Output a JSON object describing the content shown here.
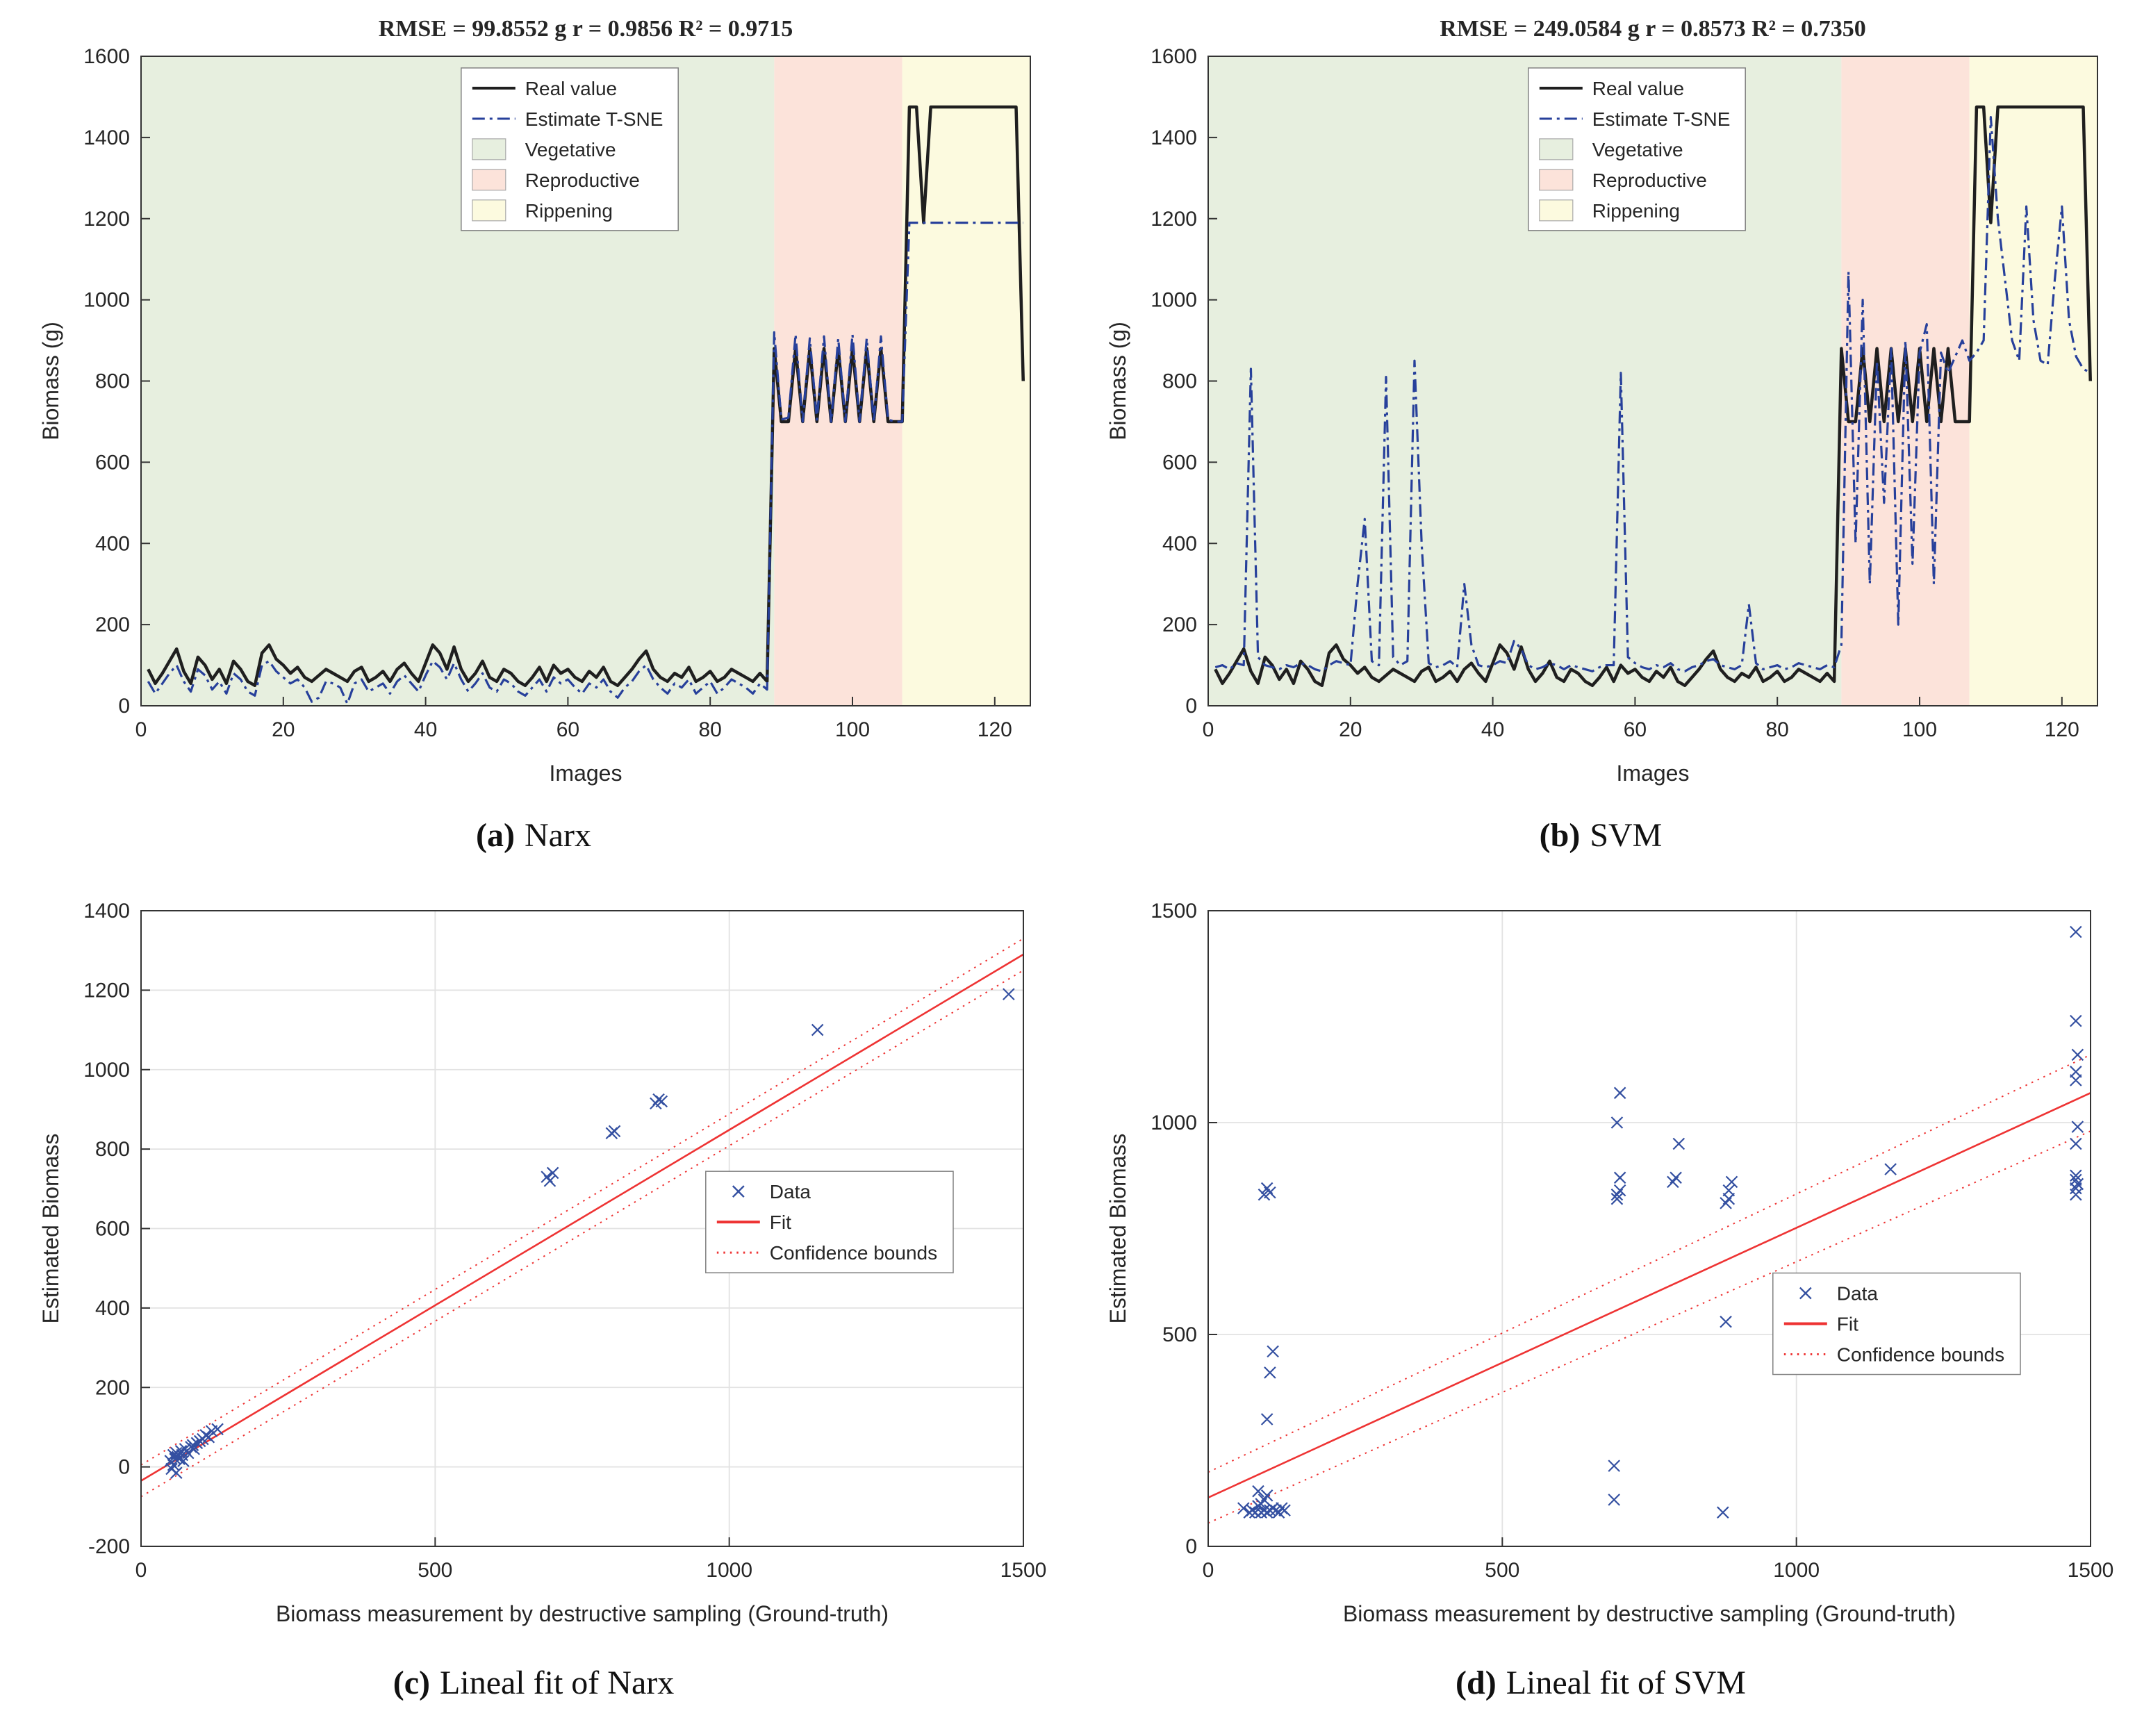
{
  "figure": {
    "captions": [
      {
        "label": "(a)",
        "text": "Narx"
      },
      {
        "label": "(b)",
        "text": "SVM"
      },
      {
        "label": "(c)",
        "text": "Lineal fit of Narx"
      },
      {
        "label": "(d)",
        "text": "Lineal fit of SVM"
      }
    ]
  },
  "chart_data": [
    {
      "id": "narx-timeseries",
      "type": "line",
      "title": "RMSE = 99.8552 g r = 0.9856 R² = 0.9715",
      "xlabel": "Images",
      "ylabel": "Biomass (g)",
      "xlim": [
        0,
        125
      ],
      "ylim": [
        0,
        1600
      ],
      "xticks": [
        0,
        20,
        40,
        60,
        80,
        100,
        120
      ],
      "yticks": [
        0,
        200,
        400,
        600,
        800,
        1000,
        1200,
        1400,
        1600
      ],
      "grid": false,
      "regions": [
        {
          "name": "Vegetative",
          "from": 0,
          "to": 89,
          "color": "#e7efdf"
        },
        {
          "name": "Reproductive",
          "from": 89,
          "to": 107,
          "color": "#fce3da"
        },
        {
          "name": "Rippening",
          "from": 107,
          "to": 125,
          "color": "#fcfadf"
        }
      ],
      "series": [
        {
          "name": "Real value",
          "color": "#1f1f1f",
          "style": "solid",
          "width": 4.5,
          "x_start": 1,
          "values": [
            90,
            55,
            80,
            110,
            140,
            85,
            55,
            120,
            100,
            65,
            90,
            55,
            110,
            90,
            60,
            50,
            130,
            150,
            115,
            100,
            80,
            95,
            70,
            60,
            75,
            90,
            80,
            70,
            60,
            85,
            95,
            60,
            70,
            85,
            60,
            90,
            105,
            80,
            60,
            105,
            150,
            130,
            90,
            145,
            90,
            60,
            80,
            110,
            70,
            60,
            90,
            80,
            60,
            50,
            70,
            95,
            60,
            100,
            80,
            90,
            70,
            60,
            85,
            70,
            95,
            60,
            50,
            70,
            90,
            115,
            135,
            90,
            70,
            60,
            80,
            70,
            95,
            60,
            70,
            85,
            60,
            70,
            90,
            80,
            70,
            60,
            80,
            60,
            880,
            700,
            700,
            880,
            700,
            880,
            700,
            880,
            700,
            880,
            700,
            880,
            700,
            880,
            700,
            880,
            700,
            700,
            700,
            1475,
            1475,
            1190,
            1475,
            1475,
            1475,
            1475,
            1475,
            1475,
            1475,
            1475,
            1475,
            1475,
            1475,
            1475,
            1475,
            800
          ]
        },
        {
          "name": "Estimate T-SNE",
          "color": "#27409b",
          "style": "dashdot",
          "width": 3.2,
          "x_start": 1,
          "values": [
            60,
            30,
            55,
            80,
            100,
            60,
            35,
            90,
            75,
            40,
            60,
            30,
            80,
            65,
            35,
            25,
            100,
            110,
            85,
            70,
            55,
            65,
            45,
            10,
            20,
            60,
            55,
            45,
            5,
            55,
            65,
            35,
            45,
            55,
            30,
            60,
            75,
            55,
            35,
            75,
            110,
            95,
            65,
            105,
            65,
            35,
            55,
            80,
            45,
            35,
            65,
            55,
            35,
            25,
            45,
            65,
            35,
            70,
            55,
            65,
            45,
            30,
            55,
            45,
            65,
            35,
            20,
            45,
            60,
            85,
            100,
            65,
            45,
            30,
            55,
            45,
            65,
            30,
            45,
            60,
            30,
            45,
            65,
            55,
            45,
            30,
            55,
            40,
            920,
            705,
            710,
            915,
            700,
            905,
            705,
            910,
            700,
            905,
            700,
            915,
            700,
            905,
            700,
            910,
            705,
            700,
            700,
            1190,
            1190,
            1190,
            1190,
            1190,
            1190,
            1190,
            1190,
            1190,
            1190,
            1190,
            1190,
            1190,
            1190,
            1190,
            1190,
            1190
          ]
        }
      ],
      "legend_pos": [
        0.36,
        0.018
      ],
      "legend_items": [
        {
          "label": "Real value",
          "type": "line",
          "color": "#1f1f1f",
          "style": "solid"
        },
        {
          "label": "Estimate T-SNE",
          "type": "line",
          "color": "#27409b",
          "style": "dashdot"
        },
        {
          "label": "Vegetative",
          "type": "patch",
          "color": "#e7efdf"
        },
        {
          "label": "Reproductive",
          "type": "patch",
          "color": "#fce3da"
        },
        {
          "label": "Rippening",
          "type": "patch",
          "color": "#fcfadf"
        }
      ]
    },
    {
      "id": "svm-timeseries",
      "type": "line",
      "title": "RMSE = 249.0584 g r = 0.8573 R² = 0.7350",
      "xlabel": "Images",
      "ylabel": "Biomass (g)",
      "xlim": [
        0,
        125
      ],
      "ylim": [
        0,
        1600
      ],
      "xticks": [
        0,
        20,
        40,
        60,
        80,
        100,
        120
      ],
      "yticks": [
        0,
        200,
        400,
        600,
        800,
        1000,
        1200,
        1400,
        1600
      ],
      "grid": false,
      "regions": [
        {
          "name": "Vegetative",
          "from": 0,
          "to": 89,
          "color": "#e7efdf"
        },
        {
          "name": "Reproductive",
          "from": 89,
          "to": 107,
          "color": "#fce3da"
        },
        {
          "name": "Rippening",
          "from": 107,
          "to": 125,
          "color": "#fcfadf"
        }
      ],
      "series": [
        {
          "name": "Real value",
          "color": "#1f1f1f",
          "style": "solid",
          "width": 4.5,
          "x_start": 1,
          "values": [
            90,
            55,
            80,
            110,
            140,
            85,
            55,
            120,
            100,
            65,
            90,
            55,
            110,
            90,
            60,
            50,
            130,
            150,
            115,
            100,
            80,
            95,
            70,
            60,
            75,
            90,
            80,
            70,
            60,
            85,
            95,
            60,
            70,
            85,
            60,
            90,
            105,
            80,
            60,
            105,
            150,
            130,
            90,
            145,
            90,
            60,
            80,
            110,
            70,
            60,
            90,
            80,
            60,
            50,
            70,
            95,
            60,
            100,
            80,
            90,
            70,
            60,
            85,
            70,
            95,
            60,
            50,
            70,
            90,
            115,
            135,
            90,
            70,
            60,
            80,
            70,
            95,
            60,
            70,
            85,
            60,
            70,
            90,
            80,
            70,
            60,
            80,
            60,
            880,
            700,
            700,
            880,
            700,
            880,
            700,
            880,
            700,
            880,
            700,
            880,
            700,
            880,
            700,
            880,
            700,
            700,
            700,
            1475,
            1475,
            1190,
            1475,
            1475,
            1475,
            1475,
            1475,
            1475,
            1475,
            1475,
            1475,
            1475,
            1475,
            1475,
            1475,
            800
          ]
        },
        {
          "name": "Estimate T-SNE",
          "color": "#27409b",
          "style": "dashdot",
          "width": 3.2,
          "x_start": 1,
          "values": [
            95,
            100,
            90,
            105,
            100,
            830,
            120,
            100,
            95,
            90,
            100,
            95,
            105,
            100,
            90,
            85,
            100,
            110,
            105,
            100,
            300,
            460,
            110,
            100,
            810,
            120,
            100,
            110,
            850,
            400,
            105,
            95,
            100,
            110,
            95,
            300,
            150,
            100,
            95,
            100,
            110,
            105,
            160,
            140,
            100,
            90,
            95,
            105,
            100,
            90,
            100,
            95,
            90,
            85,
            95,
            100,
            100,
            820,
            120,
            105,
            95,
            90,
            100,
            95,
            105,
            90,
            85,
            95,
            100,
            110,
            115,
            100,
            95,
            90,
            100,
            250,
            105,
            90,
            95,
            100,
            90,
            95,
            105,
            100,
            95,
            90,
            100,
            95,
            150,
            1070,
            400,
            1000,
            300,
            850,
            500,
            880,
            200,
            900,
            350,
            870,
            940,
            300,
            870,
            820,
            860,
            900,
            850,
            870,
            900,
            1450,
            1200,
            1050,
            900,
            850,
            1230,
            950,
            850,
            840,
            1050,
            1230,
            950,
            860,
            830,
            820
          ]
        }
      ],
      "legend_pos": [
        0.36,
        0.018
      ],
      "legend_items": [
        {
          "label": "Real value",
          "type": "line",
          "color": "#1f1f1f",
          "style": "solid"
        },
        {
          "label": "Estimate T-SNE",
          "type": "line",
          "color": "#27409b",
          "style": "dashdot"
        },
        {
          "label": "Vegetative",
          "type": "patch",
          "color": "#e7efdf"
        },
        {
          "label": "Reproductive",
          "type": "patch",
          "color": "#fce3da"
        },
        {
          "label": "Rippening",
          "type": "patch",
          "color": "#fcfadf"
        }
      ]
    },
    {
      "id": "narx-linear-fit",
      "type": "scatter",
      "title": "",
      "xlabel": "Biomass measurement by destructive sampling (Ground-truth)",
      "ylabel": "Estimated Biomass",
      "xlim": [
        0,
        1500
      ],
      "ylim": [
        -200,
        1400
      ],
      "xticks": [
        0,
        500,
        1000,
        1500
      ],
      "yticks": [
        -200,
        0,
        200,
        400,
        600,
        800,
        1000,
        1200,
        1400
      ],
      "grid": true,
      "marker_color": "#3450a1",
      "fit_color": "#ee3333",
      "points": [
        [
          50,
          15
        ],
        [
          52,
          -5
        ],
        [
          55,
          30
        ],
        [
          55,
          5
        ],
        [
          58,
          20
        ],
        [
          60,
          35
        ],
        [
          60,
          -15
        ],
        [
          62,
          25
        ],
        [
          65,
          20
        ],
        [
          68,
          40
        ],
        [
          70,
          30
        ],
        [
          72,
          15
        ],
        [
          75,
          45
        ],
        [
          80,
          35
        ],
        [
          85,
          50
        ],
        [
          88,
          55
        ],
        [
          90,
          45
        ],
        [
          95,
          60
        ],
        [
          100,
          65
        ],
        [
          105,
          70
        ],
        [
          110,
          80
        ],
        [
          115,
          75
        ],
        [
          120,
          90
        ],
        [
          130,
          95
        ],
        [
          690,
          730
        ],
        [
          695,
          720
        ],
        [
          700,
          740
        ],
        [
          800,
          840
        ],
        [
          805,
          845
        ],
        [
          875,
          915
        ],
        [
          880,
          925
        ],
        [
          885,
          920
        ],
        [
          1150,
          1100
        ],
        [
          1475,
          1190
        ]
      ],
      "fit": {
        "x": [
          0,
          1500
        ],
        "y": [
          -35,
          1290
        ]
      },
      "bounds": {
        "x": [
          0,
          1500
        ],
        "upper": [
          5,
          1330
        ],
        "lower": [
          -75,
          1250
        ]
      },
      "legend_pos": [
        0.64,
        0.41
      ],
      "legend_items": [
        {
          "label": "Data",
          "type": "marker",
          "color": "#3450a1"
        },
        {
          "label": "Fit",
          "type": "line",
          "color": "#ee3333",
          "style": "solid"
        },
        {
          "label": "Confidence bounds",
          "type": "line",
          "color": "#ee3333",
          "style": "dotted"
        }
      ]
    },
    {
      "id": "svm-linear-fit",
      "type": "scatter",
      "title": "",
      "xlabel": "Biomass measurement by destructive sampling (Ground-truth)",
      "ylabel": "Estimated Biomass",
      "xlim": [
        0,
        1500
      ],
      "ylim": [
        0,
        1500
      ],
      "xticks": [
        0,
        500,
        1000,
        1500
      ],
      "yticks": [
        0,
        500,
        1000,
        1500
      ],
      "grid": true,
      "marker_color": "#3450a1",
      "fit_color": "#ee3333",
      "points": [
        [
          60,
          90
        ],
        [
          70,
          80
        ],
        [
          75,
          85
        ],
        [
          80,
          80
        ],
        [
          85,
          95
        ],
        [
          85,
          130
        ],
        [
          90,
          80
        ],
        [
          90,
          100
        ],
        [
          95,
          85
        ],
        [
          95,
          110
        ],
        [
          100,
          80
        ],
        [
          100,
          120
        ],
        [
          100,
          300
        ],
        [
          105,
          85
        ],
        [
          105,
          410
        ],
        [
          110,
          90
        ],
        [
          110,
          460
        ],
        [
          115,
          85
        ],
        [
          120,
          80
        ],
        [
          125,
          90
        ],
        [
          130,
          85
        ],
        [
          95,
          830
        ],
        [
          100,
          845
        ],
        [
          105,
          835
        ],
        [
          690,
          110
        ],
        [
          690,
          190
        ],
        [
          695,
          820
        ],
        [
          695,
          830
        ],
        [
          700,
          840
        ],
        [
          700,
          870
        ],
        [
          695,
          1000
        ],
        [
          700,
          1070
        ],
        [
          790,
          860
        ],
        [
          795,
          870
        ],
        [
          800,
          950
        ],
        [
          875,
          80
        ],
        [
          880,
          530
        ],
        [
          880,
          810
        ],
        [
          885,
          820
        ],
        [
          885,
          840
        ],
        [
          890,
          860
        ],
        [
          1160,
          890
        ],
        [
          1475,
          830
        ],
        [
          1475,
          845
        ],
        [
          1478,
          855
        ],
        [
          1475,
          865
        ],
        [
          1475,
          875
        ],
        [
          1475,
          950
        ],
        [
          1478,
          990
        ],
        [
          1475,
          1100
        ],
        [
          1475,
          1120
        ],
        [
          1478,
          1160
        ],
        [
          1475,
          1240
        ],
        [
          1475,
          1450
        ]
      ],
      "fit": {
        "x": [
          0,
          1500
        ],
        "y": [
          115,
          1070
        ]
      },
      "bounds": {
        "x": [
          0,
          1500
        ],
        "upper": [
          175,
          1160
        ],
        "lower": [
          55,
          980
        ]
      },
      "legend_pos": [
        0.64,
        0.57
      ],
      "legend_items": [
        {
          "label": "Data",
          "type": "marker",
          "color": "#3450a1"
        },
        {
          "label": "Fit",
          "type": "line",
          "color": "#ee3333",
          "style": "solid"
        },
        {
          "label": "Confidence bounds",
          "type": "line",
          "color": "#ee3333",
          "style": "dotted"
        }
      ]
    }
  ]
}
